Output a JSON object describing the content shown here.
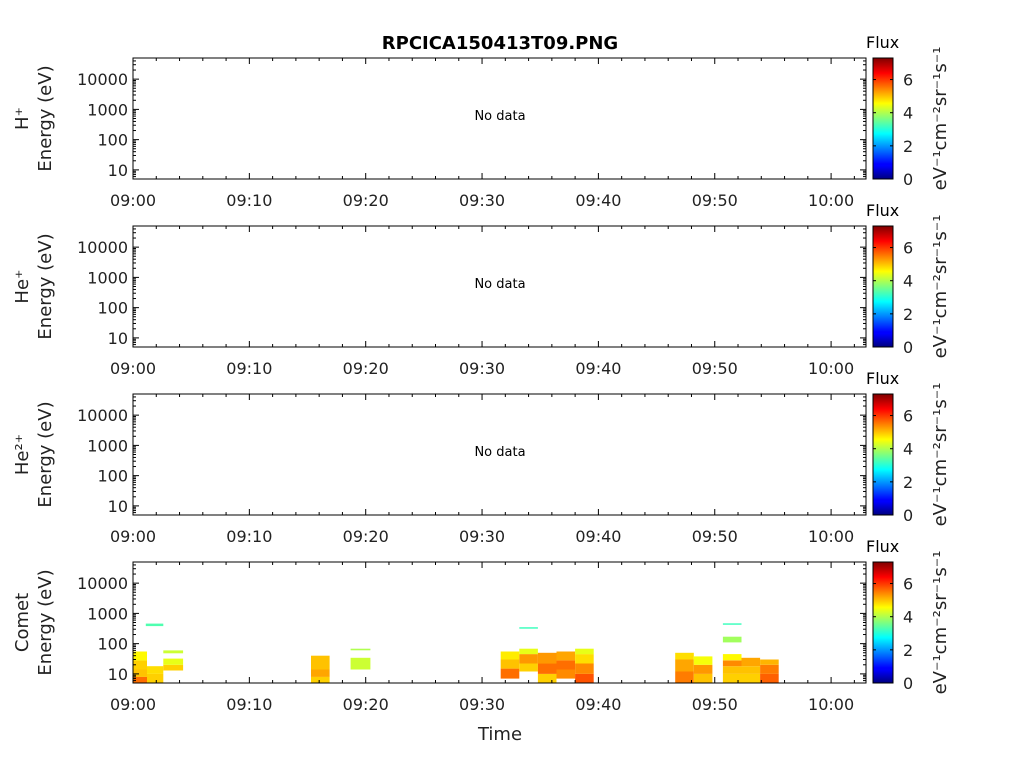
{
  "chart_data": {
    "type": "heatmap",
    "title": "RPCICA150413T09.PNG",
    "xlabel": "Time",
    "x_ticks": [
      "09:00",
      "09:10",
      "09:20",
      "09:30",
      "09:40",
      "09:50",
      "10:00"
    ],
    "x_range_min": [
      0,
      63
    ],
    "y_ticks": [
      "10",
      "100",
      "1000",
      "10000"
    ],
    "y_tick_values": [
      10,
      100,
      1000,
      10000
    ],
    "y_log_range": [
      5,
      50000
    ],
    "y_scale": "log",
    "colorbar": {
      "label": "Flux",
      "unit": "eV⁻¹cm⁻²sr⁻¹s⁻¹",
      "ticks": [
        "0",
        "2",
        "4",
        "6"
      ],
      "range": [
        0,
        7.3
      ],
      "colormap": "jet"
    },
    "panels": [
      {
        "species_label": "H⁺",
        "ylabel": "Energy (eV)",
        "no_data": "No data",
        "cells": []
      },
      {
        "species_label": "He⁺",
        "ylabel": "Energy (eV)",
        "no_data": "No data",
        "cells": []
      },
      {
        "species_label": "He²⁺",
        "ylabel": "Energy (eV)",
        "no_data": "No data",
        "cells": []
      },
      {
        "species_label": "Comet",
        "ylabel": "Energy (eV)",
        "no_data": "",
        "cells": [
          {
            "t0": 0.0,
            "t1": 1.2,
            "e0": 5,
            "e1": 8,
            "v": 5.6
          },
          {
            "t0": 0.0,
            "t1": 1.2,
            "e0": 8,
            "e1": 14,
            "v": 5.0
          },
          {
            "t0": 0.0,
            "t1": 1.2,
            "e0": 14,
            "e1": 28,
            "v": 4.9
          },
          {
            "t0": 0.0,
            "t1": 1.2,
            "e0": 28,
            "e1": 55,
            "v": 4.6
          },
          {
            "t0": 1.2,
            "t1": 2.6,
            "e0": 5,
            "e1": 10,
            "v": 4.9
          },
          {
            "t0": 1.2,
            "t1": 2.6,
            "e0": 10,
            "e1": 18,
            "v": 4.8
          },
          {
            "t0": 1.1,
            "t1": 2.6,
            "e0": 380,
            "e1": 460,
            "v": 3.3
          },
          {
            "t0": 2.6,
            "t1": 4.3,
            "e0": 13,
            "e1": 20,
            "v": 4.9
          },
          {
            "t0": 2.6,
            "t1": 4.3,
            "e0": 20,
            "e1": 32,
            "v": 4.4
          },
          {
            "t0": 2.6,
            "t1": 4.3,
            "e0": 48,
            "e1": 60,
            "v": 4.2
          },
          {
            "t0": 15.3,
            "t1": 16.9,
            "e0": 5,
            "e1": 8,
            "v": 4.9
          },
          {
            "t0": 15.3,
            "t1": 16.9,
            "e0": 8,
            "e1": 14,
            "v": 5.2
          },
          {
            "t0": 15.3,
            "t1": 16.9,
            "e0": 14,
            "e1": 40,
            "v": 5.0
          },
          {
            "t0": 18.7,
            "t1": 20.4,
            "e0": 14,
            "e1": 34,
            "v": 4.2
          },
          {
            "t0": 18.7,
            "t1": 20.4,
            "e0": 60,
            "e1": 68,
            "v": 4.0
          },
          {
            "t0": 31.6,
            "t1": 33.2,
            "e0": 7,
            "e1": 15,
            "v": 5.6
          },
          {
            "t0": 31.6,
            "t1": 33.2,
            "e0": 15,
            "e1": 30,
            "v": 5.0
          },
          {
            "t0": 31.6,
            "t1": 33.2,
            "e0": 30,
            "e1": 55,
            "v": 4.7
          },
          {
            "t0": 33.2,
            "t1": 34.8,
            "e0": 12,
            "e1": 22,
            "v": 4.9
          },
          {
            "t0": 33.2,
            "t1": 34.8,
            "e0": 22,
            "e1": 45,
            "v": 5.3
          },
          {
            "t0": 33.2,
            "t1": 34.8,
            "e0": 45,
            "e1": 68,
            "v": 4.4
          },
          {
            "t0": 33.2,
            "t1": 34.8,
            "e0": 320,
            "e1": 350,
            "v": 3.2
          },
          {
            "t0": 34.8,
            "t1": 36.4,
            "e0": 5,
            "e1": 10,
            "v": 4.9
          },
          {
            "t0": 34.8,
            "t1": 36.4,
            "e0": 10,
            "e1": 22,
            "v": 5.6
          },
          {
            "t0": 34.8,
            "t1": 36.4,
            "e0": 22,
            "e1": 50,
            "v": 5.3
          },
          {
            "t0": 36.4,
            "t1": 38.0,
            "e0": 7,
            "e1": 14,
            "v": 5.4
          },
          {
            "t0": 36.4,
            "t1": 38.0,
            "e0": 14,
            "e1": 28,
            "v": 5.6
          },
          {
            "t0": 36.4,
            "t1": 38.0,
            "e0": 28,
            "e1": 55,
            "v": 5.2
          },
          {
            "t0": 38.0,
            "t1": 39.6,
            "e0": 5,
            "e1": 10,
            "v": 5.8
          },
          {
            "t0": 38.0,
            "t1": 39.6,
            "e0": 10,
            "e1": 22,
            "v": 5.4
          },
          {
            "t0": 38.0,
            "t1": 39.6,
            "e0": 22,
            "e1": 45,
            "v": 4.8
          },
          {
            "t0": 38.0,
            "t1": 39.6,
            "e0": 45,
            "e1": 68,
            "v": 4.4
          },
          {
            "t0": 46.6,
            "t1": 48.2,
            "e0": 5,
            "e1": 12,
            "v": 5.5
          },
          {
            "t0": 46.6,
            "t1": 48.2,
            "e0": 12,
            "e1": 30,
            "v": 5.2
          },
          {
            "t0": 46.6,
            "t1": 48.2,
            "e0": 30,
            "e1": 50,
            "v": 4.8
          },
          {
            "t0": 48.2,
            "t1": 49.8,
            "e0": 5,
            "e1": 10,
            "v": 5.0
          },
          {
            "t0": 48.2,
            "t1": 49.8,
            "e0": 10,
            "e1": 20,
            "v": 5.3
          },
          {
            "t0": 48.2,
            "t1": 49.8,
            "e0": 20,
            "e1": 38,
            "v": 4.5
          },
          {
            "t0": 50.7,
            "t1": 52.3,
            "e0": 5,
            "e1": 10,
            "v": 4.9
          },
          {
            "t0": 50.7,
            "t1": 52.3,
            "e0": 10,
            "e1": 18,
            "v": 5.0
          },
          {
            "t0": 50.7,
            "t1": 52.3,
            "e0": 18,
            "e1": 28,
            "v": 5.4
          },
          {
            "t0": 50.7,
            "t1": 52.3,
            "e0": 28,
            "e1": 45,
            "v": 4.6
          },
          {
            "t0": 50.7,
            "t1": 52.3,
            "e0": 110,
            "e1": 170,
            "v": 3.9
          },
          {
            "t0": 50.7,
            "t1": 52.3,
            "e0": 420,
            "e1": 470,
            "v": 3.2
          },
          {
            "t0": 52.3,
            "t1": 53.9,
            "e0": 5,
            "e1": 10,
            "v": 4.9
          },
          {
            "t0": 52.3,
            "t1": 53.9,
            "e0": 10,
            "e1": 18,
            "v": 5.0
          },
          {
            "t0": 52.3,
            "t1": 53.9,
            "e0": 18,
            "e1": 34,
            "v": 5.2
          },
          {
            "t0": 53.9,
            "t1": 55.5,
            "e0": 5,
            "e1": 10,
            "v": 5.7
          },
          {
            "t0": 53.9,
            "t1": 55.5,
            "e0": 10,
            "e1": 20,
            "v": 5.5
          },
          {
            "t0": 53.9,
            "t1": 55.5,
            "e0": 20,
            "e1": 30,
            "v": 5.1
          }
        ]
      }
    ]
  }
}
